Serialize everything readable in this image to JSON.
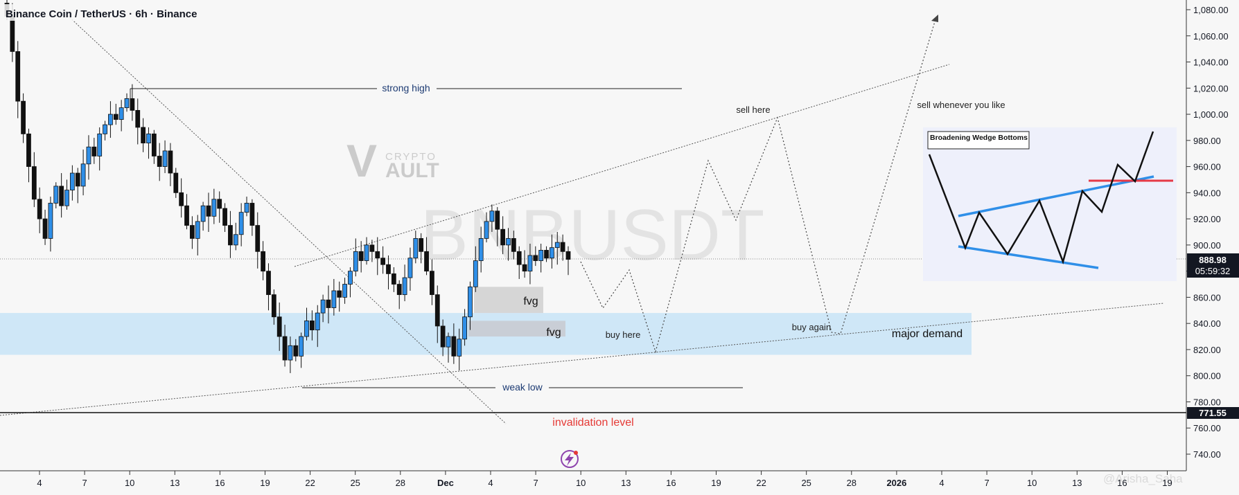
{
  "header": {
    "symbol_title": "Binance Coin / TetherUS · 6h · Binance"
  },
  "watermark": {
    "symbol": "BNBUSDT",
    "logo_word_top": "CRYPTO",
    "logo_word_bottom": "AULT",
    "logo_letter": "V",
    "credit": "@Arisha_Saha"
  },
  "price_scale": {
    "ticks": [
      "1,080.00",
      "1,060.00",
      "1,040.00",
      "1,020.00",
      "1,000.00",
      "980.00",
      "960.00",
      "940.00",
      "920.00",
      "900.00",
      "880.00",
      "860.00",
      "840.00",
      "820.00",
      "800.00",
      "780.00",
      "760.00",
      "740.00"
    ],
    "current_price_label": "888.98",
    "countdown_label": "05:59:32",
    "invalidation_price_label": "771.55",
    "current_badge_color": "#131722",
    "invalidation_badge_color": "#131722"
  },
  "time_scale": {
    "labels": [
      "4",
      "7",
      "10",
      "13",
      "16",
      "19",
      "22",
      "25",
      "28",
      "Dec",
      "4",
      "7",
      "10",
      "13",
      "16",
      "19",
      "22",
      "25",
      "28",
      "2026",
      "4",
      "7",
      "10",
      "13",
      "16",
      "19"
    ]
  },
  "annotations": {
    "strong_high": "strong high",
    "weak_low": "weak low",
    "sell_here": "sell here",
    "sell_whenever": "sell whenever you like",
    "buy_here": "buy here",
    "buy_again": "buy again",
    "major_demand": "major demand",
    "fvg_upper": "fvg",
    "fvg_lower": "fvg",
    "invalidation": "invalidation level",
    "invalidation_color": "#e53935",
    "demand_zone_color": "#cfe7f7",
    "fvg_color": "#d6d6d6"
  },
  "inset": {
    "title": "Broadening Wedge Bottoms",
    "line_color": "#2f8fe8",
    "breakout_color": "#e53946"
  },
  "icons": {
    "bolt": "lightning-bolt-icon"
  },
  "chart_data": {
    "type": "candlestick",
    "symbol": "BNBUSDT",
    "timeframe": "6h",
    "ylim": [
      730,
      1090
    ],
    "last_price": 888.98,
    "invalidation_price": 771.55,
    "demand_zone": [
      816,
      848
    ],
    "fvg_zones": [
      [
        848,
        868
      ],
      [
        830,
        842
      ]
    ],
    "strong_high": 1019,
    "weak_low": 790,
    "x_labels": [
      "4",
      "7",
      "10",
      "13",
      "16",
      "19",
      "22",
      "25",
      "28",
      "Dec",
      "4",
      "7",
      "10",
      "13",
      "16",
      "19",
      "22",
      "25",
      "28",
      "2026",
      "4",
      "7",
      "10",
      "13",
      "16",
      "19"
    ],
    "series_path": [
      [
        1085,
        1075
      ],
      [
        1075,
        1048
      ],
      [
        1048,
        1010
      ],
      [
        1010,
        985
      ],
      [
        985,
        960
      ],
      [
        960,
        935
      ],
      [
        935,
        920
      ],
      [
        920,
        905
      ],
      [
        905,
        932
      ],
      [
        932,
        945
      ],
      [
        945,
        930
      ],
      [
        930,
        942
      ],
      [
        942,
        955
      ],
      [
        955,
        945
      ],
      [
        945,
        962
      ],
      [
        962,
        975
      ],
      [
        975,
        968
      ],
      [
        968,
        985
      ],
      [
        985,
        992
      ],
      [
        992,
        1000
      ],
      [
        1000,
        996
      ],
      [
        996,
        1005
      ],
      [
        1005,
        1012
      ],
      [
        1012,
        1003
      ],
      [
        1003,
        990
      ],
      [
        990,
        978
      ],
      [
        978,
        985
      ],
      [
        985,
        968
      ],
      [
        968,
        960
      ],
      [
        960,
        972
      ],
      [
        972,
        955
      ],
      [
        955,
        940
      ],
      [
        940,
        930
      ],
      [
        930,
        915
      ],
      [
        915,
        905
      ],
      [
        905,
        918
      ],
      [
        918,
        930
      ],
      [
        930,
        922
      ],
      [
        922,
        935
      ],
      [
        935,
        928
      ],
      [
        928,
        915
      ],
      [
        915,
        900
      ],
      [
        900,
        908
      ],
      [
        908,
        925
      ],
      [
        925,
        932
      ],
      [
        932,
        915
      ],
      [
        915,
        895
      ],
      [
        895,
        880
      ],
      [
        880,
        862
      ],
      [
        862,
        845
      ],
      [
        845,
        830
      ],
      [
        830,
        812
      ],
      [
        812,
        823
      ],
      [
        823,
        815
      ],
      [
        815,
        830
      ],
      [
        830,
        842
      ],
      [
        842,
        835
      ],
      [
        835,
        848
      ],
      [
        848,
        858
      ],
      [
        858,
        852
      ],
      [
        852,
        865
      ],
      [
        865,
        860
      ],
      [
        860,
        870
      ],
      [
        870,
        880
      ],
      [
        880,
        895
      ],
      [
        895,
        888
      ],
      [
        888,
        900
      ],
      [
        900,
        895
      ],
      [
        895,
        890
      ],
      [
        890,
        885
      ],
      [
        885,
        878
      ],
      [
        878,
        870
      ],
      [
        870,
        862
      ],
      [
        862,
        875
      ],
      [
        875,
        890
      ],
      [
        890,
        905
      ],
      [
        905,
        895
      ],
      [
        895,
        880
      ],
      [
        880,
        862
      ],
      [
        862,
        838
      ],
      [
        838,
        822
      ],
      [
        822,
        830
      ],
      [
        830,
        815
      ],
      [
        815,
        828
      ],
      [
        828,
        845
      ],
      [
        845,
        868
      ],
      [
        868,
        888
      ],
      [
        888,
        905
      ],
      [
        905,
        918
      ],
      [
        918,
        926
      ],
      [
        926,
        912
      ],
      [
        912,
        900
      ],
      [
        900,
        905
      ],
      [
        905,
        895
      ],
      [
        895,
        885
      ],
      [
        885,
        880
      ],
      [
        880,
        892
      ],
      [
        892,
        888
      ],
      [
        888,
        896
      ],
      [
        896,
        890
      ],
      [
        890,
        898
      ],
      [
        898,
        902
      ],
      [
        902,
        895
      ],
      [
        895,
        889
      ]
    ]
  }
}
